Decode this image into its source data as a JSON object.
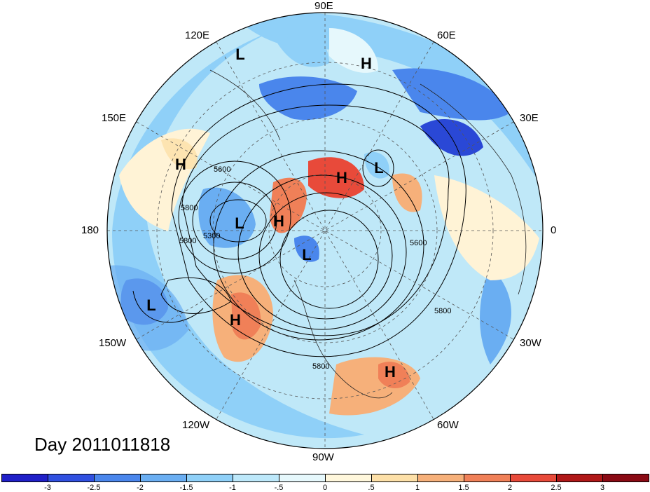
{
  "map": {
    "projection": "north-polar-stereographic",
    "longitude_labels": [
      "90E",
      "60E",
      "30E",
      "0",
      "30W",
      "60W",
      "90W",
      "120W",
      "150W",
      "180",
      "150E",
      "120E"
    ],
    "day_label": "Day 2011011818",
    "contour_labels": [
      "5600",
      "5800",
      "5300",
      "5800",
      "5600",
      "5800",
      "5800"
    ],
    "systems": [
      {
        "type": "L",
        "text": "L"
      },
      {
        "type": "H",
        "text": "H"
      },
      {
        "type": "H",
        "text": "H"
      },
      {
        "type": "L",
        "text": "L"
      },
      {
        "type": "H",
        "text": "H"
      },
      {
        "type": "L",
        "text": "L"
      },
      {
        "type": "H",
        "text": "H"
      },
      {
        "type": "L",
        "text": "L"
      },
      {
        "type": "L",
        "text": "L"
      },
      {
        "type": "H",
        "text": "H"
      },
      {
        "type": "H",
        "text": "H"
      }
    ]
  },
  "colorbar": {
    "ticks": [
      "-3",
      "-2.5",
      "-2",
      "-1.5",
      "-1",
      "-.5",
      "0",
      ".5",
      "1",
      "1.5",
      "2",
      "2.5",
      "3"
    ],
    "colors": [
      "#2020c8",
      "#3050e0",
      "#4a86ec",
      "#6aaef2",
      "#8fd0f8",
      "#bde8fa",
      "#e6f8fc",
      "#fff7dc",
      "#fde0a8",
      "#f6b07a",
      "#f08058",
      "#e84a3a",
      "#b01818",
      "#8a0a14"
    ]
  }
}
